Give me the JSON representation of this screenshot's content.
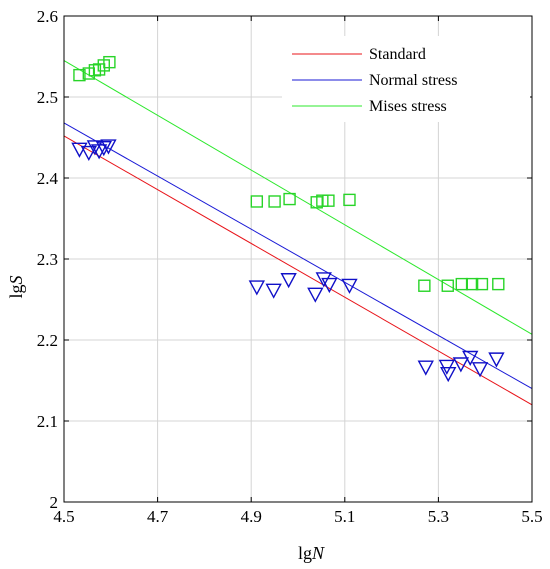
{
  "chart_data": {
    "type": "scatter",
    "xlabel": {
      "prefix": "lg",
      "var": "N"
    },
    "ylabel": {
      "prefix": "lg",
      "var": "S"
    },
    "xlim": [
      4.5,
      5.5
    ],
    "ylim": [
      2.0,
      2.6
    ],
    "xticks": [
      "4.5",
      "4.7",
      "4.9",
      "5.1",
      "5.3",
      "5.5"
    ],
    "yticks": [
      "2",
      "2.1",
      "2.2",
      "2.3",
      "2.4",
      "2.5",
      "2.6"
    ],
    "grid": true,
    "legend_position": "top-right",
    "series": [
      {
        "name": "Standard",
        "kind": "line",
        "color": "#e8141a",
        "points": [
          [
            4.5,
            2.452
          ],
          [
            5.5,
            2.12
          ]
        ]
      },
      {
        "name": "Normal stress",
        "kind": "line",
        "color": "#1a1ad6",
        "marker_color": "#1010c8",
        "marker": "triangle-down",
        "points": [
          [
            4.5,
            2.468
          ],
          [
            5.5,
            2.14
          ]
        ],
        "markers": [
          [
            4.533,
            2.436
          ],
          [
            4.553,
            2.432
          ],
          [
            4.566,
            2.439
          ],
          [
            4.575,
            2.434
          ],
          [
            4.585,
            2.438
          ],
          [
            4.595,
            2.44
          ],
          [
            4.912,
            2.266
          ],
          [
            4.948,
            2.262
          ],
          [
            4.98,
            2.275
          ],
          [
            5.037,
            2.257
          ],
          [
            5.055,
            2.276
          ],
          [
            5.067,
            2.269
          ],
          [
            5.11,
            2.268
          ],
          [
            5.273,
            2.167
          ],
          [
            5.318,
            2.168
          ],
          [
            5.321,
            2.159
          ],
          [
            5.348,
            2.171
          ],
          [
            5.368,
            2.179
          ],
          [
            5.389,
            2.165
          ],
          [
            5.424,
            2.177
          ]
        ]
      },
      {
        "name": "Mises stress",
        "kind": "line",
        "color": "#2ce82c",
        "marker_color": "#28d428",
        "marker": "square",
        "points": [
          [
            4.5,
            2.545
          ],
          [
            5.5,
            2.207
          ]
        ],
        "markers": [
          [
            4.533,
            2.527
          ],
          [
            4.553,
            2.529
          ],
          [
            4.566,
            2.533
          ],
          [
            4.575,
            2.534
          ],
          [
            4.585,
            2.539
          ],
          [
            4.597,
            2.543
          ],
          [
            4.912,
            2.371
          ],
          [
            4.95,
            2.371
          ],
          [
            4.982,
            2.374
          ],
          [
            5.04,
            2.37
          ],
          [
            5.052,
            2.372
          ],
          [
            5.065,
            2.372
          ],
          [
            5.11,
            2.373
          ],
          [
            5.27,
            2.267
          ],
          [
            5.32,
            2.267
          ],
          [
            5.35,
            2.269
          ],
          [
            5.372,
            2.269
          ],
          [
            5.393,
            2.269
          ],
          [
            5.428,
            2.269
          ]
        ]
      }
    ]
  }
}
